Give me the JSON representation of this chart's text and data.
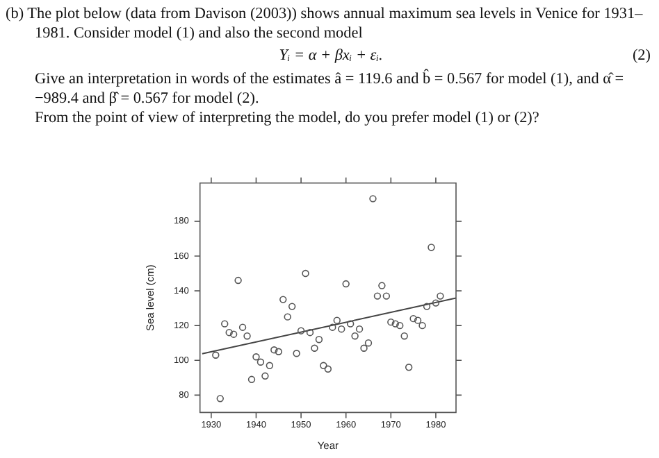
{
  "chart_data": {
    "type": "scatter",
    "xlabel": "Year",
    "ylabel": "Sea level (cm)",
    "annotations": [
      "(b) The plot below (data from Davison (2003)) shows annual maximum sea levels in Venice for 1931–1981. Consider model (1) and also the second model",
      "Yᵢ = α + βxᵢ + εᵢ.",
      "(2)",
      "Give an interpretation in words of the estimates â = 119.6 and b̂ = 0.567 for model (1), and α̂ = −989.4 and β̂ = 0.567 for model (2).",
      "From the point of view of interpreting the model, do you prefer model (1) or (2)?"
    ],
    "x": [
      1931,
      1932,
      1933,
      1934,
      1935,
      1936,
      1937,
      1938,
      1939,
      1940,
      1941,
      1942,
      1943,
      1944,
      1945,
      1946,
      1947,
      1948,
      1949,
      1950,
      1951,
      1952,
      1953,
      1954,
      1955,
      1956,
      1957,
      1958,
      1959,
      1960,
      1961,
      1962,
      1963,
      1964,
      1965,
      1966,
      1967,
      1968,
      1969,
      1970,
      1971,
      1972,
      1973,
      1974,
      1975,
      1976,
      1977,
      1978,
      1979,
      1980,
      1981
    ],
    "series": [
      {
        "color": "#555555",
        "marker": "circle",
        "values": [
          103,
          78,
          121,
          116,
          115,
          146,
          119,
          114,
          89,
          102,
          99,
          91,
          97,
          106,
          105,
          135,
          125,
          131,
          104,
          117,
          150,
          116,
          107,
          112,
          97,
          95,
          119,
          123,
          118,
          144,
          121,
          114,
          118,
          107,
          110,
          193,
          137,
          143,
          137,
          122,
          121,
          120,
          114,
          96,
          124,
          123,
          120,
          131,
          165,
          133,
          137
        ]
      },
      {
        "type": "line",
        "color": "#444444",
        "marker": "none",
        "x": [
          1928,
          1984.5
        ],
        "values": [
          103.8,
          135.8
        ]
      }
    ],
    "xlim": [
      1927.5,
      1984.5
    ],
    "xticks": [
      1930,
      1940,
      1950,
      1960,
      1970,
      1980
    ],
    "ylim": [
      70,
      202
    ],
    "yticks": [
      80,
      100,
      120,
      140,
      160,
      180
    ],
    "grid": false,
    "legend": false,
    "line_style": "solid"
  }
}
